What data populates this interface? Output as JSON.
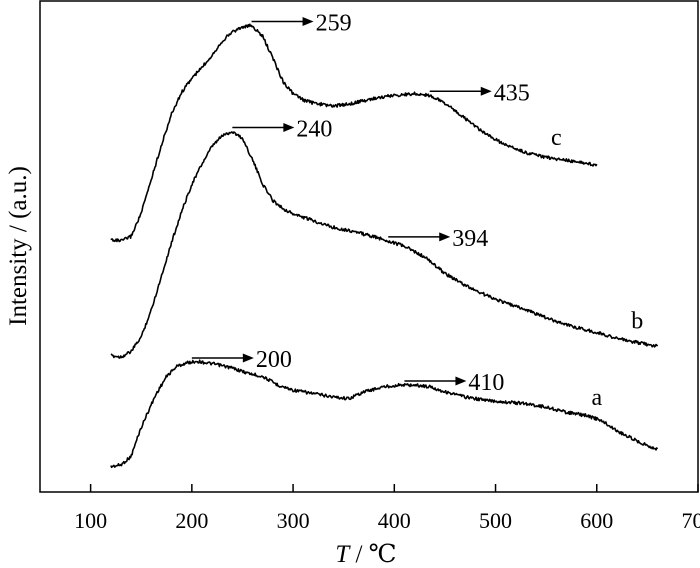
{
  "chart_data": {
    "type": "line",
    "title": "",
    "xlabel_italic": "T",
    "xlabel_rest": " / ℃",
    "ylabel": "Intensity / (a.u.)",
    "xlim": [
      50,
      700
    ],
    "xticks": [
      100,
      200,
      300,
      400,
      500,
      600,
      700
    ],
    "y_ticks_shown": false,
    "grid": false,
    "series": [
      {
        "name": "a",
        "label": "a",
        "label_x": 600,
        "points": [
          [
            120,
            0.02
          ],
          [
            130,
            0.03
          ],
          [
            140,
            0.08
          ],
          [
            148,
            0.22
          ],
          [
            155,
            0.32
          ],
          [
            165,
            0.45
          ],
          [
            175,
            0.55
          ],
          [
            185,
            0.61
          ],
          [
            195,
            0.63
          ],
          [
            205,
            0.64
          ],
          [
            215,
            0.63
          ],
          [
            225,
            0.62
          ],
          [
            240,
            0.6
          ],
          [
            255,
            0.57
          ],
          [
            270,
            0.55
          ],
          [
            285,
            0.5
          ],
          [
            300,
            0.47
          ],
          [
            320,
            0.45
          ],
          [
            340,
            0.43
          ],
          [
            355,
            0.42
          ],
          [
            370,
            0.46
          ],
          [
            390,
            0.49
          ],
          [
            405,
            0.5
          ],
          [
            420,
            0.5
          ],
          [
            435,
            0.49
          ],
          [
            450,
            0.46
          ],
          [
            470,
            0.43
          ],
          [
            490,
            0.41
          ],
          [
            510,
            0.4
          ],
          [
            530,
            0.39
          ],
          [
            550,
            0.37
          ],
          [
            570,
            0.34
          ],
          [
            590,
            0.32
          ],
          [
            605,
            0.29
          ],
          [
            620,
            0.23
          ],
          [
            640,
            0.17
          ],
          [
            660,
            0.12
          ]
        ],
        "peaks": [
          {
            "x": 200,
            "label": "200"
          },
          {
            "x": 410,
            "label": "410"
          }
        ]
      },
      {
        "name": "b",
        "label": "b",
        "label_x": 640,
        "points": [
          [
            120,
            0.01
          ],
          [
            130,
            0.0
          ],
          [
            140,
            0.04
          ],
          [
            150,
            0.15
          ],
          [
            160,
            0.35
          ],
          [
            170,
            0.6
          ],
          [
            180,
            0.85
          ],
          [
            190,
            1.08
          ],
          [
            200,
            1.28
          ],
          [
            210,
            1.43
          ],
          [
            220,
            1.56
          ],
          [
            230,
            1.64
          ],
          [
            240,
            1.67
          ],
          [
            250,
            1.62
          ],
          [
            260,
            1.46
          ],
          [
            270,
            1.28
          ],
          [
            280,
            1.16
          ],
          [
            290,
            1.1
          ],
          [
            300,
            1.06
          ],
          [
            320,
            1.01
          ],
          [
            340,
            0.96
          ],
          [
            360,
            0.93
          ],
          [
            380,
            0.89
          ],
          [
            394,
            0.86
          ],
          [
            410,
            0.82
          ],
          [
            430,
            0.74
          ],
          [
            450,
            0.62
          ],
          [
            470,
            0.53
          ],
          [
            490,
            0.46
          ],
          [
            510,
            0.4
          ],
          [
            530,
            0.35
          ],
          [
            550,
            0.29
          ],
          [
            570,
            0.24
          ],
          [
            590,
            0.2
          ],
          [
            610,
            0.16
          ],
          [
            630,
            0.12
          ],
          [
            660,
            0.08
          ]
        ],
        "peaks": [
          {
            "x": 240,
            "label": "240"
          },
          {
            "x": 394,
            "label": "394"
          }
        ]
      },
      {
        "name": "c",
        "label": "c",
        "label_x": 560,
        "points": [
          [
            120,
            0.01
          ],
          [
            130,
            0.0
          ],
          [
            140,
            0.03
          ],
          [
            150,
            0.18
          ],
          [
            160,
            0.4
          ],
          [
            170,
            0.62
          ],
          [
            180,
            0.82
          ],
          [
            190,
            0.96
          ],
          [
            200,
            1.05
          ],
          [
            210,
            1.12
          ],
          [
            220,
            1.2
          ],
          [
            230,
            1.29
          ],
          [
            240,
            1.35
          ],
          [
            250,
            1.38
          ],
          [
            259,
            1.39
          ],
          [
            270,
            1.32
          ],
          [
            280,
            1.18
          ],
          [
            290,
            1.03
          ],
          [
            300,
            0.95
          ],
          [
            310,
            0.91
          ],
          [
            320,
            0.89
          ],
          [
            340,
            0.87
          ],
          [
            360,
            0.89
          ],
          [
            380,
            0.92
          ],
          [
            400,
            0.94
          ],
          [
            420,
            0.95
          ],
          [
            435,
            0.94
          ],
          [
            450,
            0.89
          ],
          [
            470,
            0.79
          ],
          [
            490,
            0.69
          ],
          [
            510,
            0.62
          ],
          [
            530,
            0.57
          ],
          [
            550,
            0.54
          ],
          [
            570,
            0.52
          ],
          [
            590,
            0.5
          ],
          [
            600,
            0.49
          ]
        ],
        "peaks": [
          {
            "x": 259,
            "label": "259"
          },
          {
            "x": 435,
            "label": "435"
          }
        ]
      }
    ]
  }
}
